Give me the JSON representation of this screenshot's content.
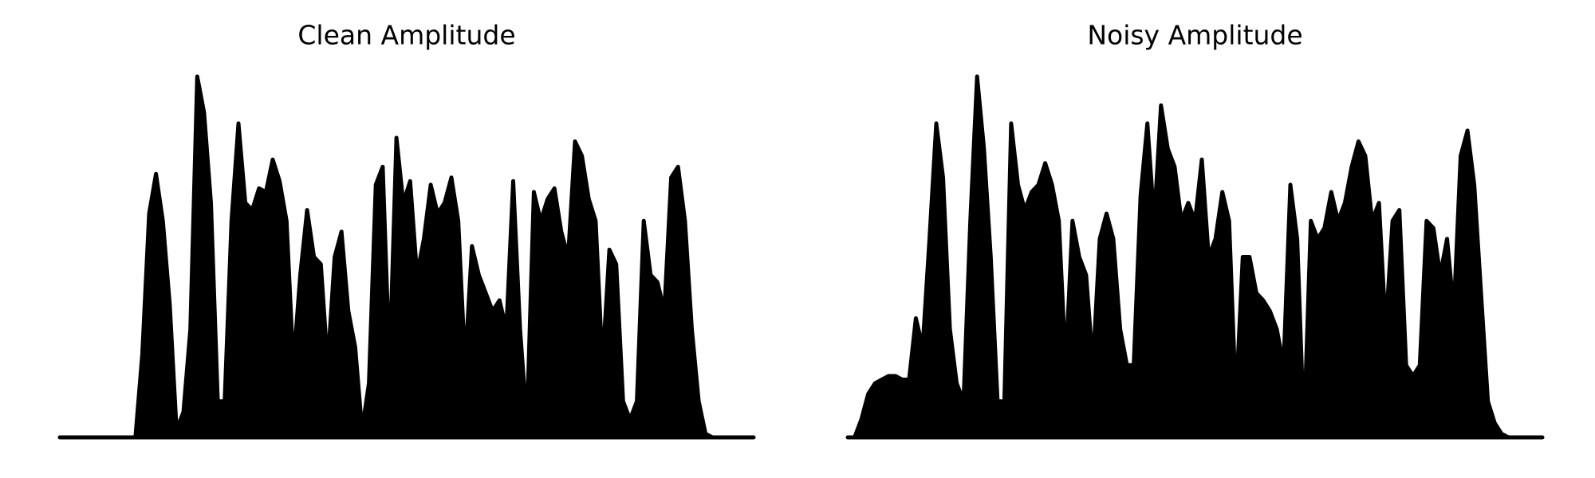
{
  "chart_data": [
    {
      "type": "area",
      "title": "Clean Amplitude",
      "color": "#000000",
      "values": [
        0,
        0,
        0,
        0,
        0,
        0,
        0,
        0,
        0,
        0,
        0,
        0,
        0.23,
        0.62,
        0.73,
        0.6,
        0.37,
        0.02,
        0.07,
        0.3,
        1.0,
        0.9,
        0.65,
        0.1,
        0.1,
        0.6,
        0.87,
        0.65,
        0.63,
        0.69,
        0.68,
        0.77,
        0.71,
        0.6,
        0.2,
        0.45,
        0.63,
        0.5,
        0.48,
        0.2,
        0.5,
        0.57,
        0.35,
        0.25,
        0.02,
        0.15,
        0.7,
        0.75,
        0.2,
        0.83,
        0.65,
        0.71,
        0.45,
        0.55,
        0.7,
        0.62,
        0.65,
        0.72,
        0.6,
        0.2,
        0.53,
        0.45,
        0.4,
        0.35,
        0.38,
        0.3,
        0.71,
        0.3,
        0.04,
        0.68,
        0.6,
        0.66,
        0.69,
        0.57,
        0.5,
        0.82,
        0.78,
        0.66,
        0.6,
        0.2,
        0.52,
        0.48,
        0.1,
        0.05,
        0.1,
        0.6,
        0.45,
        0.43,
        0.35,
        0.72,
        0.75,
        0.6,
        0.3,
        0.1,
        0.01,
        0,
        0,
        0,
        0,
        0,
        0,
        0
      ]
    },
    {
      "type": "area",
      "title": "Noisy Amplitude",
      "color": "#000000",
      "values": [
        0,
        0,
        0.05,
        0.12,
        0.15,
        0.16,
        0.17,
        0.17,
        0.16,
        0.16,
        0.33,
        0.25,
        0.55,
        0.87,
        0.72,
        0.3,
        0.15,
        0.1,
        0.6,
        1.0,
        0.8,
        0.5,
        0.1,
        0.1,
        0.87,
        0.7,
        0.63,
        0.68,
        0.7,
        0.76,
        0.7,
        0.6,
        0.2,
        0.6,
        0.5,
        0.45,
        0.2,
        0.55,
        0.62,
        0.55,
        0.3,
        0.2,
        0.2,
        0.67,
        0.87,
        0.6,
        0.92,
        0.8,
        0.75,
        0.6,
        0.65,
        0.6,
        0.77,
        0.5,
        0.55,
        0.68,
        0.6,
        0.1,
        0.5,
        0.5,
        0.4,
        0.38,
        0.35,
        0.3,
        0.2,
        0.7,
        0.55,
        0.02,
        0.6,
        0.55,
        0.58,
        0.68,
        0.6,
        0.65,
        0.75,
        0.82,
        0.78,
        0.6,
        0.65,
        0.3,
        0.6,
        0.63,
        0.2,
        0.17,
        0.2,
        0.6,
        0.58,
        0.45,
        0.55,
        0.35,
        0.78,
        0.85,
        0.7,
        0.4,
        0.1,
        0.04,
        0.01,
        0,
        0,
        0,
        0,
        0,
        0
      ]
    }
  ]
}
